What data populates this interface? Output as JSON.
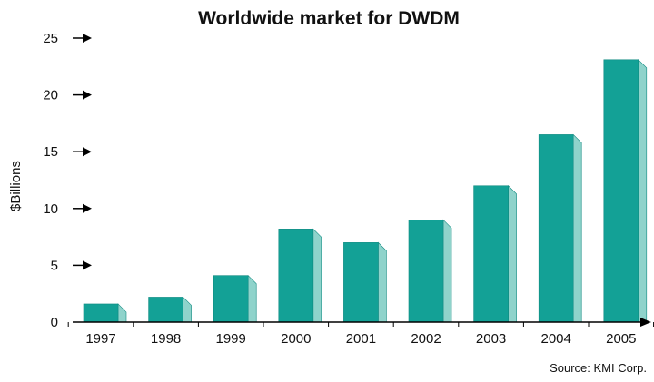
{
  "chart_data": {
    "type": "bar",
    "title": "Worldwide market for DWDM",
    "ylabel": "$Billions",
    "xlabel": "",
    "categories": [
      "1997",
      "1998",
      "1999",
      "2000",
      "2001",
      "2002",
      "2003",
      "2004",
      "2005"
    ],
    "values": [
      1.6,
      2.2,
      4.1,
      8.2,
      7.0,
      9.0,
      12.0,
      16.5,
      23.1
    ],
    "ylim": [
      0,
      25
    ],
    "yticks": [
      "0",
      "5",
      "10",
      "15",
      "20",
      "25"
    ],
    "grid": false,
    "legend": "none",
    "source": "Source: KMI Corp.",
    "colors": {
      "bar_front": "#13a196",
      "bar_side": "#8fd3cb",
      "bar_top": "#0f8a80",
      "axis": "#000000"
    }
  }
}
